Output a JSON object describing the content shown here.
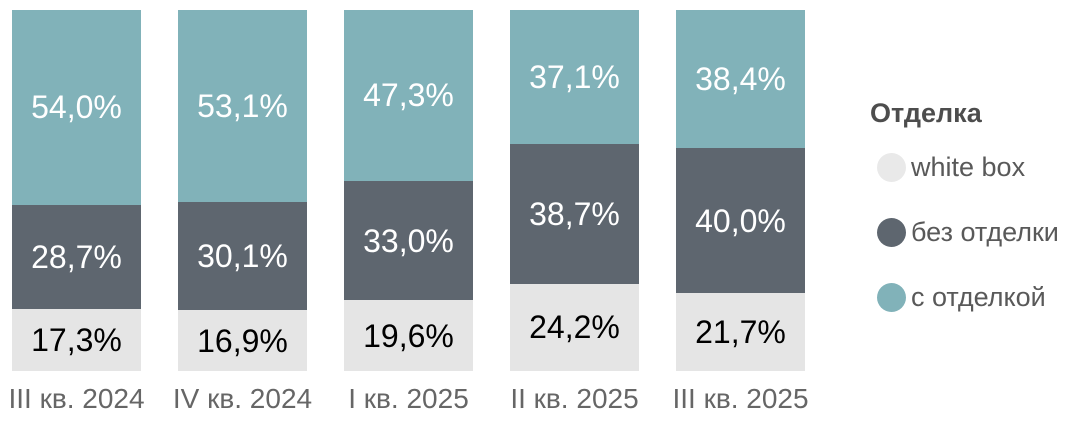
{
  "chart_data": {
    "type": "bar",
    "subtype": "stacked-100-percent",
    "title": "",
    "xlabel": "",
    "ylabel": "",
    "ylim": [
      0,
      100
    ],
    "grid": false,
    "categories": [
      "III кв. 2024",
      "IV кв. 2024",
      "I кв. 2025",
      "II кв. 2025",
      "III кв. 2025"
    ],
    "series": [
      {
        "name": "с отделкой",
        "stack_position": "top",
        "color": "#81B2B9",
        "label_color": "#FFFFFF",
        "values": [
          54.0,
          53.1,
          47.3,
          37.1,
          38.4
        ],
        "labels": [
          "54,0%",
          "53,1%",
          "47,3%",
          "37,1%",
          "38,4%"
        ]
      },
      {
        "name": "без отделки",
        "stack_position": "middle",
        "color": "#5E666F",
        "label_color": "#FFFFFF",
        "values": [
          28.7,
          30.1,
          33.0,
          38.7,
          40.0
        ],
        "labels": [
          "28,7%",
          "30,1%",
          "33,0%",
          "38,7%",
          "40,0%"
        ]
      },
      {
        "name": "white box",
        "stack_position": "bottom",
        "color": "#E5E5E5",
        "label_color": "#000000",
        "values": [
          17.3,
          16.9,
          19.6,
          24.2,
          21.7
        ],
        "labels": [
          "17,3%",
          "16,9%",
          "19,6%",
          "24,2%",
          "21,7%"
        ]
      }
    ],
    "legend": {
      "title": "Отделка",
      "position": "right",
      "items": [
        {
          "label": "white box",
          "color": "#E9E9E9"
        },
        {
          "label": "без отделки",
          "color": "#5E666F"
        },
        {
          "label": "с отделкой",
          "color": "#81B2B9"
        }
      ]
    }
  },
  "colors": {
    "background": "#FFFFFF",
    "axis_label": "#666666",
    "legend_text": "#595959",
    "legend_title": "#4D4D4D"
  }
}
